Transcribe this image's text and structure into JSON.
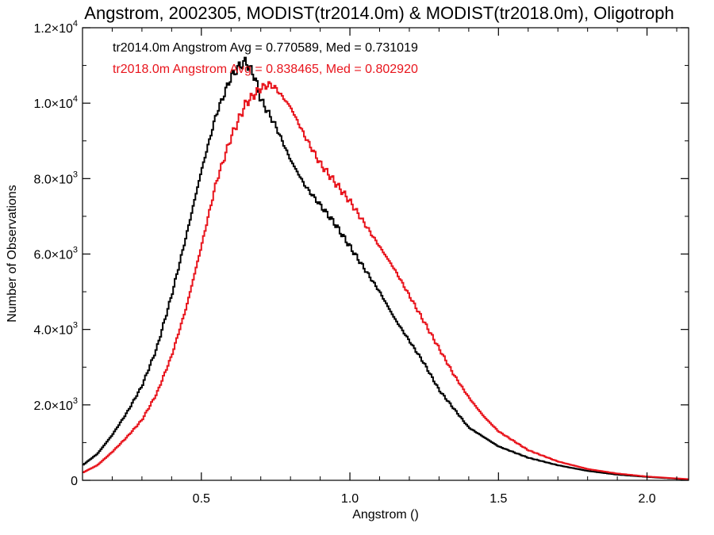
{
  "chart_data": {
    "type": "line",
    "step": true,
    "title": "Angstrom, 2002305, MODIST(tr2014.0m) & MODIST(tr2018.0m), Oligotroph",
    "xlabel": "Angstrom ()",
    "ylabel": "Number of Observations",
    "xlim": [
      0.1,
      2.14
    ],
    "ylim": [
      0,
      12000
    ],
    "x_ticks": [
      0.5,
      1.0,
      1.5,
      2.0
    ],
    "x_tick_labels": [
      "0.5",
      "1.0",
      "1.5",
      "2.0"
    ],
    "y_ticks": [
      0,
      2000,
      4000,
      6000,
      8000,
      10000,
      12000
    ],
    "y_tick_labels": [
      {
        "mantissa": "0",
        "exponent": ""
      },
      {
        "mantissa": "2.0×10",
        "exponent": "3"
      },
      {
        "mantissa": "4.0×10",
        "exponent": "3"
      },
      {
        "mantissa": "6.0×10",
        "exponent": "3"
      },
      {
        "mantissa": "8.0×10",
        "exponent": "3"
      },
      {
        "mantissa": "1.0×10",
        "exponent": "4"
      },
      {
        "mantissa": "1.2×10",
        "exponent": "4"
      }
    ],
    "grid": false,
    "legend": "top-left",
    "stats": [
      {
        "text": "tr2014.0m Angstrom Avg = 0.770589, Med = 0.731019",
        "color": "#000000"
      },
      {
        "text": "tr2018.0m Angstrom Avg = 0.838465, Med = 0.802920",
        "color": "#e8141c"
      }
    ],
    "series": [
      {
        "color": "#000000",
        "x": [
          0.1,
          0.15,
          0.2,
          0.25,
          0.3,
          0.35,
          0.4,
          0.45,
          0.5,
          0.55,
          0.6,
          0.63,
          0.65,
          0.68,
          0.7,
          0.75,
          0.8,
          0.85,
          0.9,
          0.95,
          1.0,
          1.05,
          1.1,
          1.15,
          1.2,
          1.25,
          1.3,
          1.35,
          1.4,
          1.5,
          1.6,
          1.7,
          1.8,
          1.9,
          2.0,
          2.1,
          2.14
        ],
        "y": [
          400,
          700,
          1200,
          1800,
          2500,
          3500,
          4900,
          6500,
          8200,
          9700,
          10700,
          11000,
          11100,
          10700,
          10100,
          9400,
          8500,
          7800,
          7300,
          6800,
          6200,
          5600,
          5000,
          4300,
          3700,
          3100,
          2400,
          1900,
          1400,
          900,
          600,
          400,
          250,
          150,
          90,
          40,
          20
        ]
      },
      {
        "color": "#e8141c",
        "x": [
          0.1,
          0.15,
          0.2,
          0.25,
          0.3,
          0.35,
          0.4,
          0.45,
          0.5,
          0.55,
          0.6,
          0.65,
          0.7,
          0.73,
          0.75,
          0.8,
          0.85,
          0.9,
          0.95,
          1.0,
          1.05,
          1.1,
          1.15,
          1.2,
          1.25,
          1.3,
          1.35,
          1.4,
          1.45,
          1.5,
          1.6,
          1.7,
          1.8,
          1.9,
          2.0,
          2.1,
          2.14
        ],
        "y": [
          200,
          400,
          750,
          1150,
          1600,
          2300,
          3300,
          4600,
          6200,
          7900,
          9100,
          10000,
          10400,
          10500,
          10400,
          9900,
          9100,
          8400,
          7900,
          7400,
          6800,
          6200,
          5600,
          4900,
          4200,
          3500,
          2800,
          2200,
          1700,
          1300,
          800,
          500,
          300,
          180,
          100,
          50,
          30
        ]
      }
    ]
  }
}
